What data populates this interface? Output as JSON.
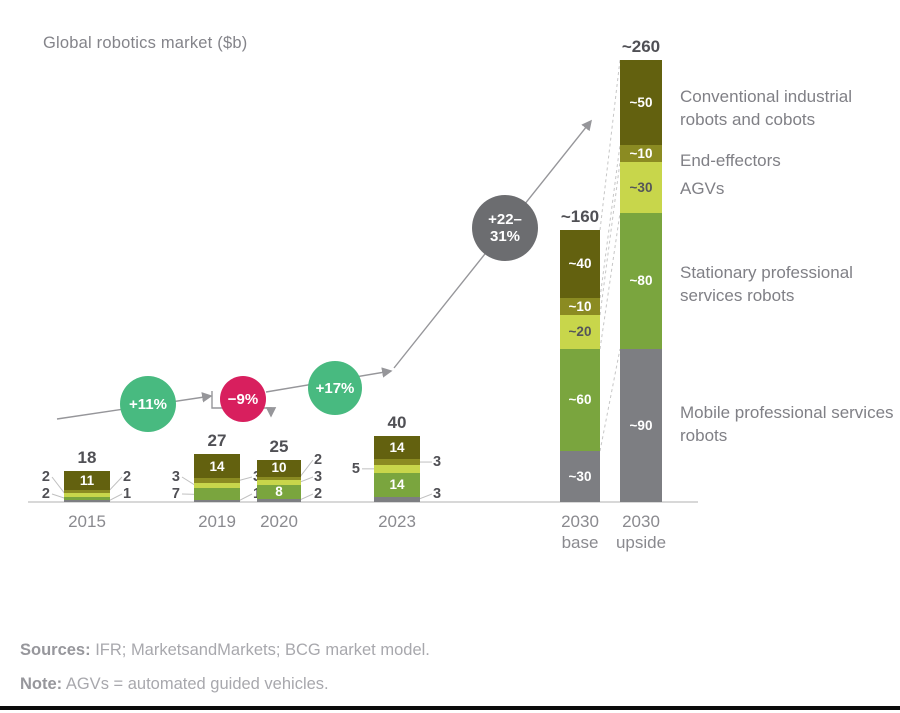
{
  "title": "Global robotics market ($b)",
  "chart_data": {
    "type": "bar",
    "stacking": "stacked",
    "title": "Global robotics market ($b)",
    "unit": "$b",
    "legend_position": "right",
    "legend": [
      {
        "key": "conventional",
        "label": "Conventional industrial robots and cobots",
        "color": "#63610F"
      },
      {
        "key": "end_effectors",
        "label": "End-effectors",
        "color": "#8B8B22"
      },
      {
        "key": "agvs",
        "label": "AGVs",
        "color": "#C8D64B"
      },
      {
        "key": "stationary",
        "label": "Stationary professional services robots",
        "color": "#7AA53E"
      },
      {
        "key": "mobile",
        "label": "Mobile professional services robots",
        "color": "#7D7E82"
      }
    ],
    "bars": [
      {
        "category": "2015",
        "category_lines": [
          "2015"
        ],
        "total": 18,
        "total_label": "18",
        "segments": [
          {
            "key": "conventional",
            "value": 11,
            "label": "11",
            "label_pos": "inside"
          },
          {
            "key": "end_effectors",
            "value": 2,
            "label": "2",
            "label_pos": "right"
          },
          {
            "key": "agvs",
            "value": 2,
            "label": "2",
            "label_pos": "left"
          },
          {
            "key": "stationary",
            "value": 2,
            "label": "2",
            "label_pos": "left"
          },
          {
            "key": "mobile",
            "value": 1,
            "label": "1",
            "label_pos": "right"
          }
        ]
      },
      {
        "category": "2019",
        "category_lines": [
          "2019"
        ],
        "total": 27,
        "total_label": "27",
        "segments": [
          {
            "key": "conventional",
            "value": 14,
            "label": "14",
            "label_pos": "inside"
          },
          {
            "key": "end_effectors",
            "value": 3,
            "label": "3",
            "label_pos": "right"
          },
          {
            "key": "agvs",
            "value": 3,
            "label": "3",
            "label_pos": "left"
          },
          {
            "key": "stationary",
            "value": 7,
            "label": "7",
            "label_pos": "left"
          },
          {
            "key": "mobile",
            "value": 1,
            "label": "1",
            "label_pos": "right"
          }
        ]
      },
      {
        "category": "2020",
        "category_lines": [
          "2020"
        ],
        "total": 25,
        "total_label": "25",
        "segments": [
          {
            "key": "conventional",
            "value": 10,
            "label": "10",
            "label_pos": "inside"
          },
          {
            "key": "end_effectors",
            "value": 2,
            "label": "2",
            "label_pos": "right"
          },
          {
            "key": "agvs",
            "value": 3,
            "label": "3",
            "label_pos": "right"
          },
          {
            "key": "stationary",
            "value": 8,
            "label": "8",
            "label_pos": "inside"
          },
          {
            "key": "mobile",
            "value": 2,
            "label": "2",
            "label_pos": "right"
          }
        ]
      },
      {
        "category": "2023",
        "category_lines": [
          "2023"
        ],
        "total": 40,
        "total_label": "40",
        "segments": [
          {
            "key": "conventional",
            "value": 14,
            "label": "14",
            "label_pos": "inside"
          },
          {
            "key": "end_effectors",
            "value": 3,
            "label": "3",
            "label_pos": "right"
          },
          {
            "key": "agvs",
            "value": 5,
            "label": "5",
            "label_pos": "left"
          },
          {
            "key": "stationary",
            "value": 14,
            "label": "14",
            "label_pos": "inside"
          },
          {
            "key": "mobile",
            "value": 3,
            "label": "3",
            "label_pos": "right"
          }
        ]
      },
      {
        "category": "2030 base",
        "category_lines": [
          "2030",
          "base"
        ],
        "total": 160,
        "total_label": "~160",
        "segments": [
          {
            "key": "conventional",
            "value": 40,
            "label": "~40",
            "label_pos": "inside"
          },
          {
            "key": "end_effectors",
            "value": 10,
            "label": "~10",
            "label_pos": "inside"
          },
          {
            "key": "agvs",
            "value": 20,
            "label": "~20",
            "label_pos": "inside",
            "label_dark": true
          },
          {
            "key": "stationary",
            "value": 60,
            "label": "~60",
            "label_pos": "inside"
          },
          {
            "key": "mobile",
            "value": 30,
            "label": "~30",
            "label_pos": "inside"
          }
        ]
      },
      {
        "category": "2030 upside",
        "category_lines": [
          "2030",
          "upside"
        ],
        "total": 260,
        "total_label": "~260",
        "segments": [
          {
            "key": "conventional",
            "value": 50,
            "label": "~50",
            "label_pos": "inside"
          },
          {
            "key": "end_effectors",
            "value": 10,
            "label": "~10",
            "label_pos": "inside"
          },
          {
            "key": "agvs",
            "value": 30,
            "label": "~30",
            "label_pos": "inside",
            "label_dark": true
          },
          {
            "key": "stationary",
            "value": 80,
            "label": "~80",
            "label_pos": "inside"
          },
          {
            "key": "mobile",
            "value": 90,
            "label": "~90",
            "label_pos": "inside"
          }
        ]
      }
    ],
    "growth_badges": [
      {
        "lines": [
          "+11%"
        ],
        "color": "#48BA80"
      },
      {
        "lines": [
          "−9%"
        ],
        "color": "#D81F5E"
      },
      {
        "lines": [
          "+17%"
        ],
        "color": "#48BA80"
      },
      {
        "lines": [
          "+22–",
          "31%"
        ],
        "color": "#6C6D70"
      }
    ]
  },
  "footer": {
    "sources_label": "Sources:",
    "sources_text": " IFR; MarketsandMarkets; BCG market model.",
    "note_label": "Note:",
    "note_text": " AGVs = automated guided vehicles."
  }
}
